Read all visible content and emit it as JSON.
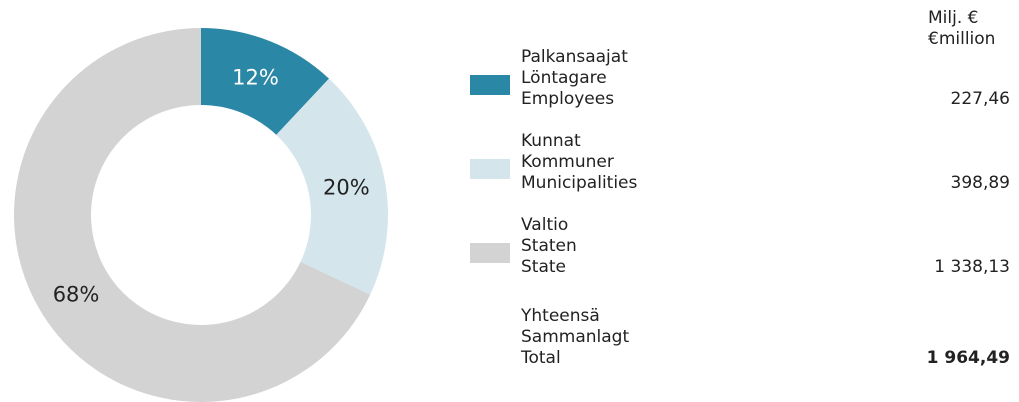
{
  "chart_data": {
    "type": "pie",
    "categories": [
      [
        "Palkansaajat",
        "Löntagare",
        "Employees"
      ],
      [
        "Kunnat",
        "Kommuner",
        "Municipalities"
      ],
      [
        "Valtio",
        "Staten",
        "State"
      ]
    ],
    "values": [
      12,
      20,
      68
    ],
    "value_labels": [
      "12%",
      "20%",
      "68%"
    ],
    "colors": [
      "#2a87a6",
      "#d4e6ec",
      "#d3d3d3"
    ],
    "label_colors": [
      "#ffffff",
      "#222222",
      "#222222"
    ],
    "unit_header": [
      "Milj. €",
      "€million"
    ],
    "amounts": [
      227.46,
      398.89,
      1338.13
    ],
    "amount_labels": [
      "227,46",
      "398,89",
      "1 338,13"
    ],
    "total_name": [
      "Yhteensä",
      "Sammanlagt",
      "Total"
    ],
    "total": 1964.49,
    "total_label": "1 964,49"
  }
}
